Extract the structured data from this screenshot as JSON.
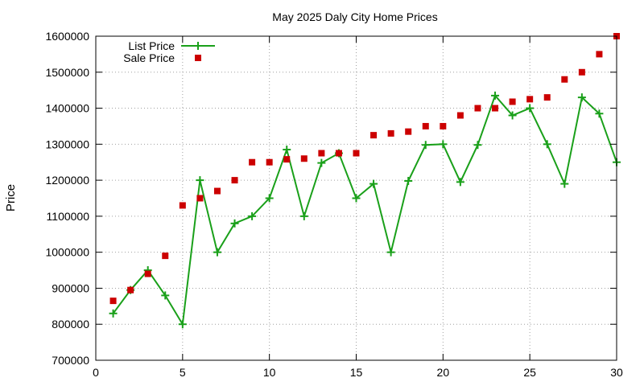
{
  "chart_data": {
    "type": "line",
    "title": "May 2025 Daly City Home Prices",
    "xlabel": "",
    "ylabel": "Price",
    "xlim": [
      0,
      30
    ],
    "ylim": [
      700000,
      1600000
    ],
    "x_ticks": [
      0,
      5,
      10,
      15,
      20,
      25,
      30
    ],
    "y_ticks": [
      700000,
      800000,
      900000,
      1000000,
      1100000,
      1200000,
      1300000,
      1400000,
      1500000,
      1600000
    ],
    "grid": true,
    "legend_position": "top-left",
    "series": [
      {
        "name": "List Price",
        "style": "line-with-plus-markers",
        "color": "#1aa01a",
        "x": [
          1,
          2,
          3,
          4,
          5,
          6,
          7,
          8,
          9,
          10,
          11,
          12,
          13,
          14,
          15,
          16,
          17,
          18,
          19,
          20,
          21,
          22,
          23,
          24,
          25,
          26,
          27,
          28,
          29,
          30
        ],
        "values": [
          830000,
          895000,
          950000,
          880000,
          800000,
          1200000,
          1000000,
          1080000,
          1100000,
          1150000,
          1285000,
          1100000,
          1248000,
          1275000,
          1150000,
          1190000,
          1000000,
          1198000,
          1298000,
          1300000,
          1195000,
          1298000,
          1435000,
          1380000,
          1400000,
          1300000,
          1190000,
          1430000,
          1385000,
          1250000
        ]
      },
      {
        "name": "Sale Price",
        "style": "square-markers",
        "color": "#cc0000",
        "x": [
          1,
          2,
          3,
          4,
          5,
          6,
          7,
          8,
          9,
          10,
          11,
          12,
          13,
          14,
          15,
          16,
          17,
          18,
          19,
          20,
          21,
          22,
          23,
          24,
          25,
          26,
          27,
          28,
          29,
          30
        ],
        "values": [
          865000,
          895000,
          940000,
          990000,
          1130000,
          1150000,
          1170000,
          1200000,
          1250000,
          1250000,
          1258000,
          1260000,
          1275000,
          1275000,
          1275000,
          1325000,
          1330000,
          1335000,
          1350000,
          1350000,
          1380000,
          1400000,
          1400000,
          1418000,
          1425000,
          1430000,
          1480000,
          1500000,
          1550000,
          1600000
        ]
      }
    ]
  }
}
